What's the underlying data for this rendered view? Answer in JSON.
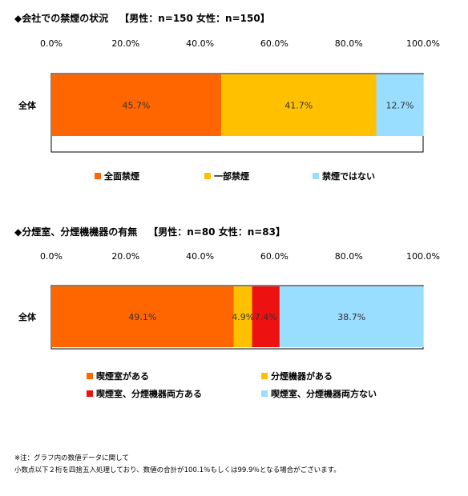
{
  "chart_data": [
    {
      "type": "bar",
      "orientation": "horizontal",
      "stacked": true,
      "title": "◆会社での禁煙の状況",
      "sample_note": "【男性：n=150 女性：n=150】",
      "categories": [
        "全体"
      ],
      "series": [
        {
          "name": "全面禁煙",
          "values": [
            45.7
          ],
          "color": "#ff6600"
        },
        {
          "name": "一部禁煙",
          "values": [
            41.7
          ],
          "color": "#ffc000"
        },
        {
          "name": "禁煙ではない",
          "values": [
            12.7
          ],
          "color": "#99ddff"
        }
      ],
      "data_labels": [
        "45.7%",
        "41.7%",
        "12.7%"
      ],
      "xlim": [
        0,
        100
      ],
      "tick_labels": [
        "0.0%",
        "20.0%",
        "40.0%",
        "60.0%",
        "80.0%",
        "100.0%"
      ],
      "legend_position": "bottom"
    },
    {
      "type": "bar",
      "orientation": "horizontal",
      "stacked": true,
      "title": "◆分煙室、分煙機機器の有無",
      "sample_note": "【男性：n=80 女性：n=83】",
      "categories": [
        "全体"
      ],
      "series": [
        {
          "name": "喫煙室がある",
          "values": [
            49.1
          ],
          "color": "#ff6600"
        },
        {
          "name": "分煙機器がある",
          "values": [
            4.9
          ],
          "color": "#ffc000"
        },
        {
          "name": "喫煙室、分煙機器両方ある",
          "values": [
            7.4
          ],
          "color": "#ee1111"
        },
        {
          "name": "喫煙室、分煙機器両方ない",
          "values": [
            38.7
          ],
          "color": "#99ddff"
        }
      ],
      "data_labels": [
        "49.1%",
        "4.9%",
        "7.4%",
        "38.7%"
      ],
      "xlim": [
        0,
        100
      ],
      "tick_labels": [
        "0.0%",
        "20.0%",
        "40.0%",
        "60.0%",
        "80.0%",
        "100.0%"
      ],
      "legend_position": "bottom"
    }
  ],
  "notes": {
    "line1": "※注：グラフ内の数値データに関して",
    "line2": "小数点以下２桁を四捨五入処理しており、数値の合計が100.1％もしくは99.9％となる場合がございます。"
  }
}
